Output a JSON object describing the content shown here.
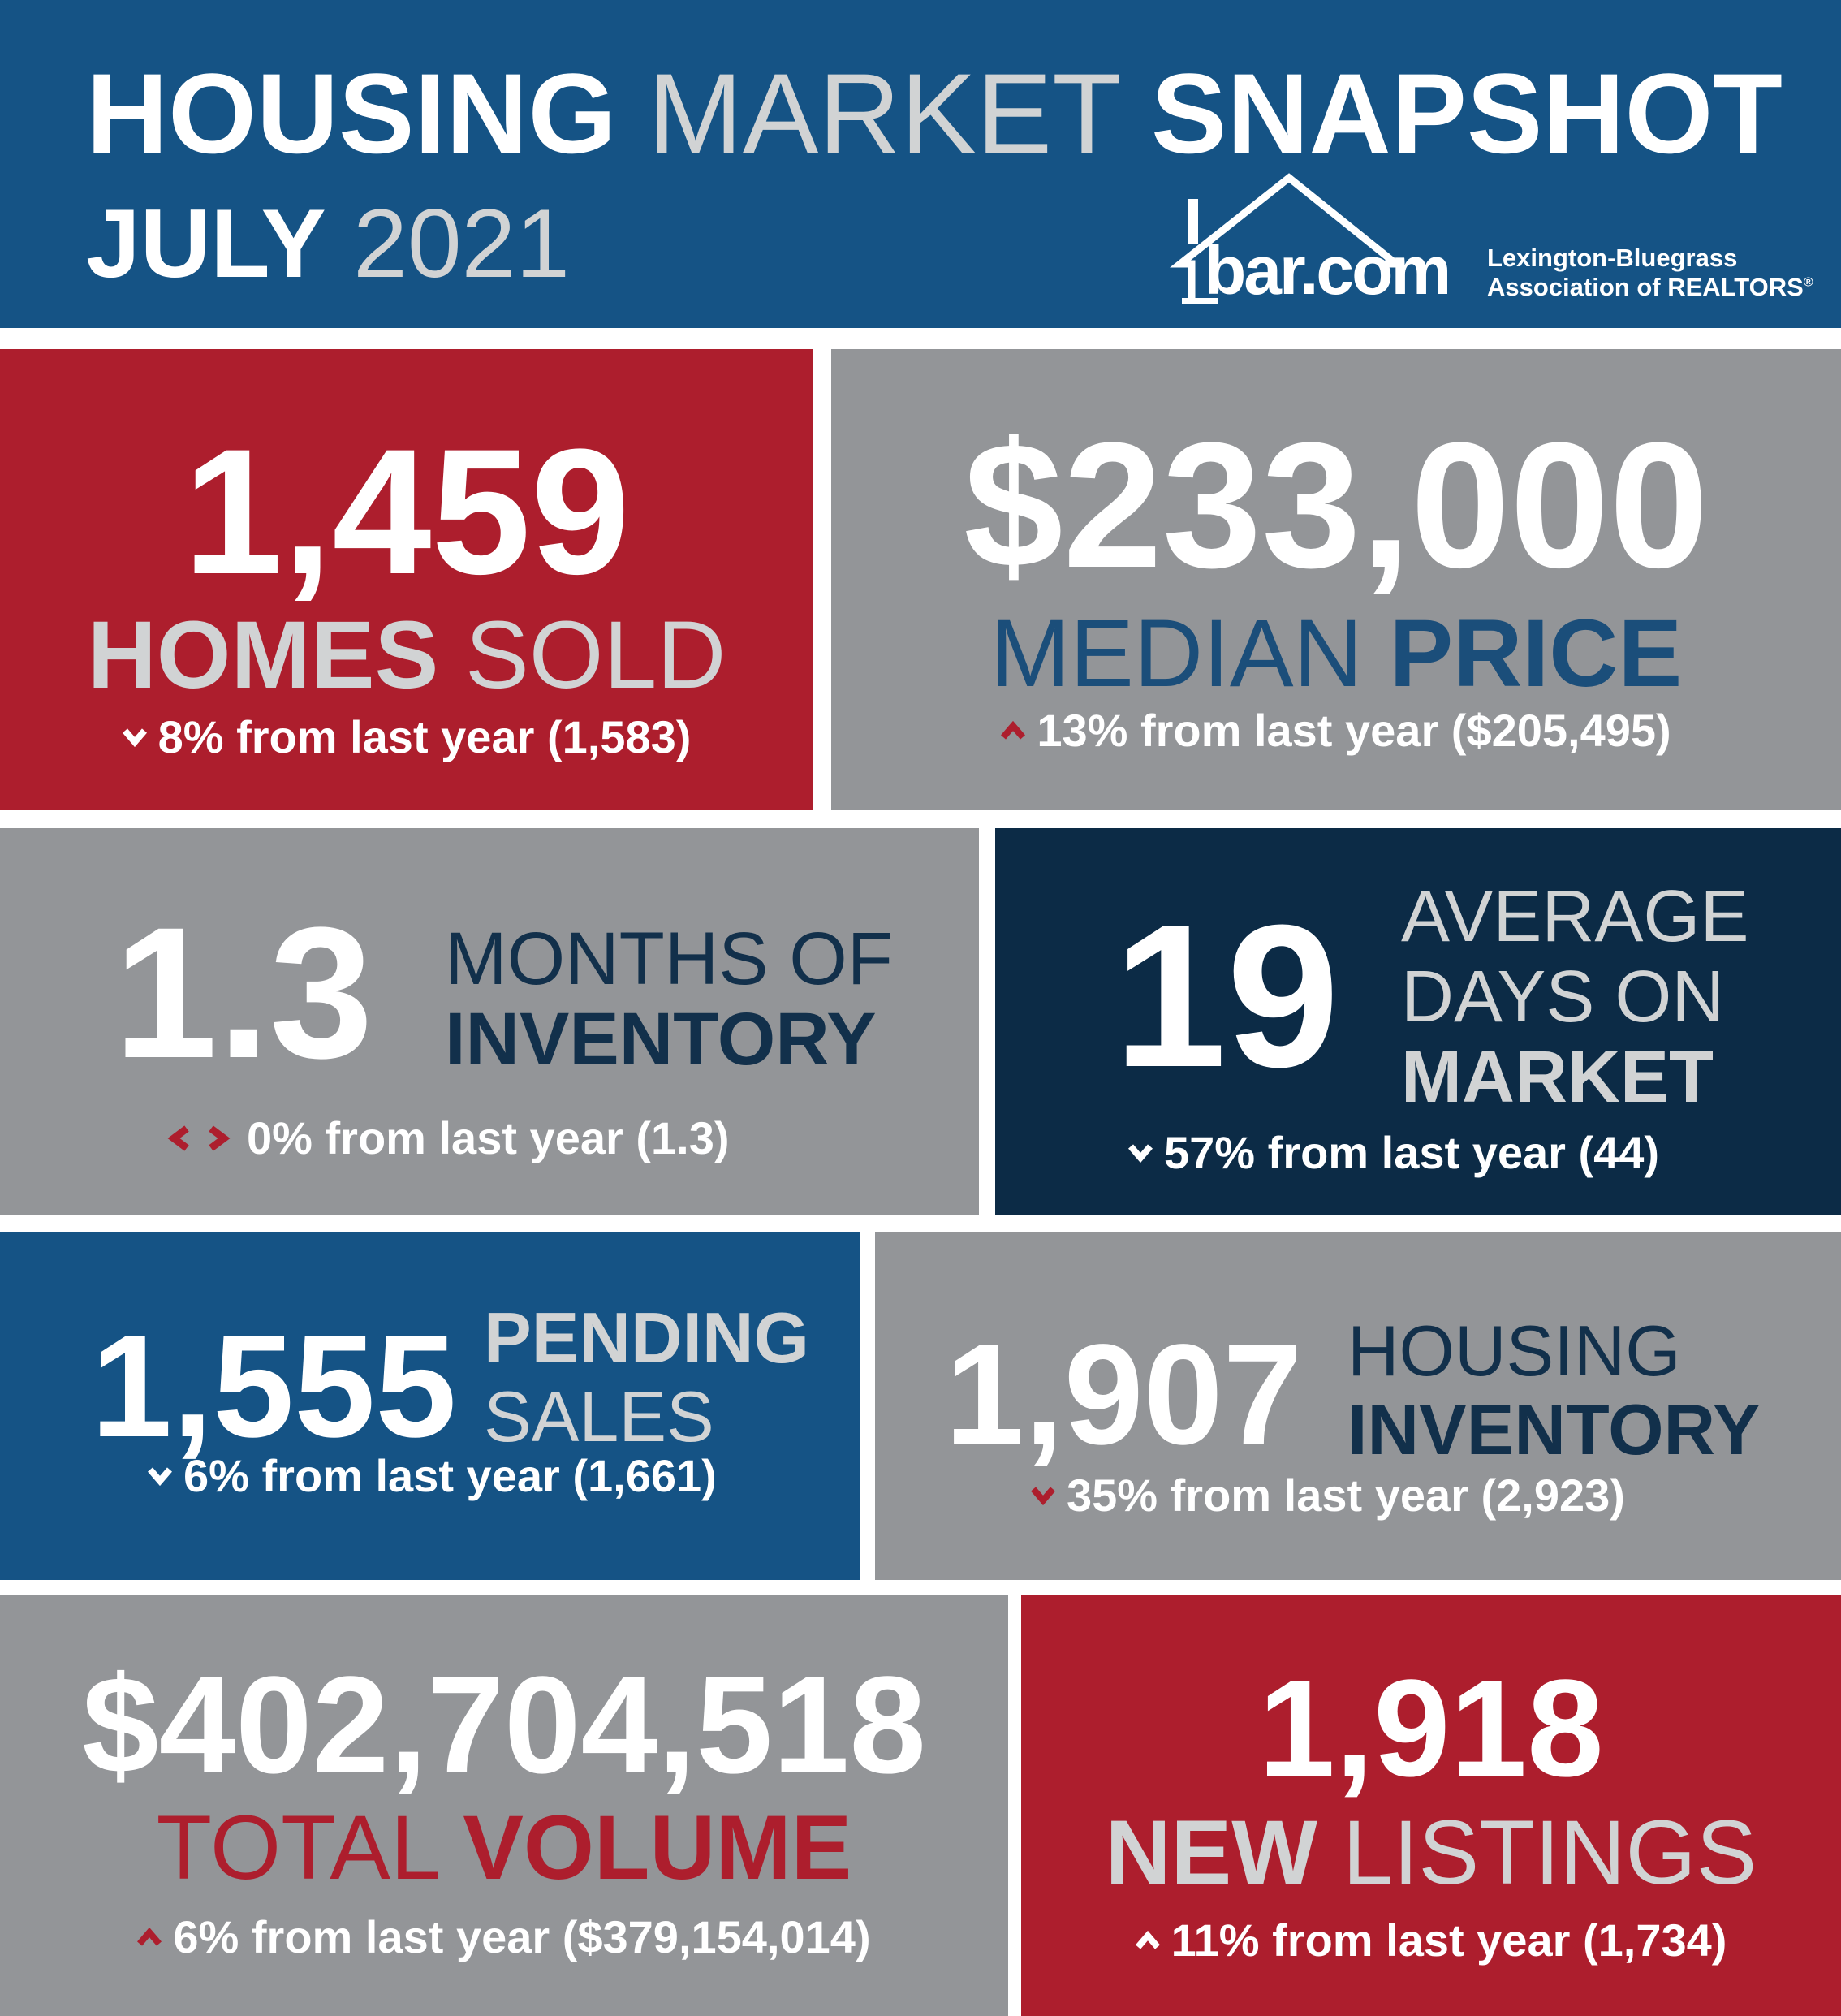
{
  "header": {
    "title_part1": "HOUSING",
    "title_part2": "MARKET",
    "title_part3": "SNAPSHOT",
    "month": "JULY",
    "year": "2021",
    "logo_text": "bar.com",
    "logo_org_line1": "Lexington-Bluegrass",
    "logo_org_line2": "Association of REALTORS",
    "logo_reg": "®"
  },
  "homes_sold": {
    "value": "1,459",
    "label_bold": "HOMES",
    "label_light": "SOLD",
    "direction": "down",
    "change": "8% from last year (1,583)"
  },
  "median_price": {
    "value": "$233,000",
    "label_light": "MEDIAN",
    "label_bold": "PRICE",
    "direction": "up",
    "change": "13% from last year ($205,495)"
  },
  "months_inventory": {
    "value": "1.3",
    "label_line1": "MONTHS OF",
    "label_line2": "INVENTORY",
    "direction": "flat",
    "change": "0% from last year (1.3)"
  },
  "days_on_market": {
    "value": "19",
    "label_line1": "AVERAGE",
    "label_line2": "DAYS ON",
    "label_line3": "MARKET",
    "direction": "down",
    "change": "57% from last year (44)"
  },
  "pending_sales": {
    "value": "1,555",
    "label_bold": "PENDING",
    "label_light": "SALES",
    "direction": "down",
    "change": "6% from last year (1,661)"
  },
  "housing_inventory": {
    "value": "1,907",
    "label_light": "HOUSING",
    "label_bold": "INVENTORY",
    "direction": "down",
    "change": "35% from last year (2,923)"
  },
  "total_volume": {
    "value": "$402,704,518",
    "label_light": "TOTAL",
    "label_bold": "VOLUME",
    "direction": "up",
    "change": "6% from last year ($379,154,014)"
  },
  "new_listings": {
    "value": "1,918",
    "label_bold": "NEW",
    "label_light": "LISTINGS",
    "direction": "up",
    "change": "11% from last year (1,734)"
  },
  "colors": {
    "blue": "#155385",
    "red": "#ad1e2d",
    "gray": "#939598",
    "navy": "#0c2b46"
  }
}
